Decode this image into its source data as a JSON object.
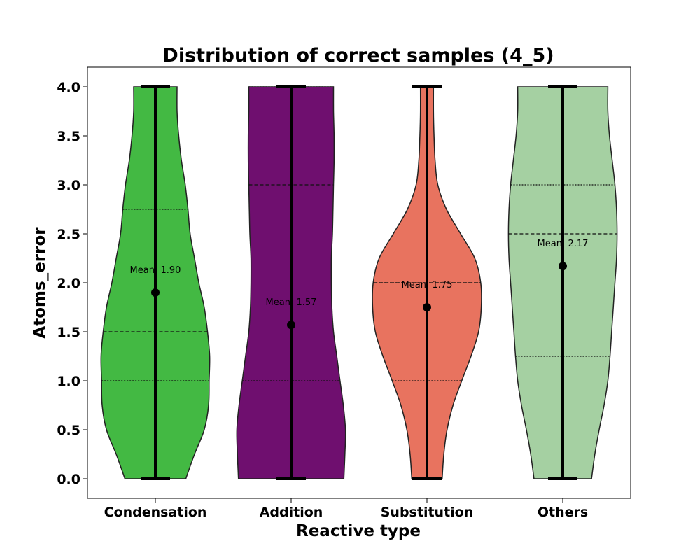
{
  "chart_data": {
    "type": "violin",
    "title": "Distribution of correct samples (4_5)",
    "xlabel": "Reactive type",
    "ylabel": "Atoms_error",
    "ylim": [
      -0.2,
      4.2
    ],
    "yticks": [
      "0.0",
      "0.5",
      "1.0",
      "1.5",
      "2.0",
      "2.5",
      "3.0",
      "3.5",
      "4.0"
    ],
    "categories": [
      "Condensation",
      "Addition",
      "Substitution",
      "Others"
    ],
    "series": [
      {
        "category": "Condensation",
        "color": "#43b943",
        "min": 0.0,
        "max": 4.0,
        "q1": 1.0,
        "median": 1.5,
        "q3": 2.75,
        "mean": 1.9,
        "mean_label": "Mean: 1.90",
        "density_width": [
          [
            0.0,
            0.56
          ],
          [
            0.25,
            0.72
          ],
          [
            0.5,
            0.9
          ],
          [
            0.75,
            0.98
          ],
          [
            1.0,
            0.99
          ],
          [
            1.25,
            1.0
          ],
          [
            1.5,
            0.96
          ],
          [
            1.75,
            0.9
          ],
          [
            2.0,
            0.8
          ],
          [
            2.25,
            0.72
          ],
          [
            2.5,
            0.64
          ],
          [
            2.75,
            0.6
          ],
          [
            3.0,
            0.55
          ],
          [
            3.25,
            0.48
          ],
          [
            3.5,
            0.43
          ],
          [
            3.75,
            0.4
          ],
          [
            4.0,
            0.4
          ]
        ]
      },
      {
        "category": "Addition",
        "color": "#6f0f6f",
        "min": 0.0,
        "max": 4.0,
        "q1": 1.0,
        "median": 3.0,
        "q3": 4.0,
        "mean": 1.57,
        "mean_label": "Mean: 1.57",
        "density_width": [
          [
            0.0,
            0.97
          ],
          [
            0.25,
            0.99
          ],
          [
            0.5,
            1.0
          ],
          [
            0.75,
            0.96
          ],
          [
            1.0,
            0.9
          ],
          [
            1.25,
            0.84
          ],
          [
            1.5,
            0.78
          ],
          [
            1.75,
            0.75
          ],
          [
            2.0,
            0.74
          ],
          [
            2.25,
            0.74
          ],
          [
            2.5,
            0.76
          ],
          [
            2.75,
            0.77
          ],
          [
            3.0,
            0.78
          ],
          [
            3.25,
            0.79
          ],
          [
            3.5,
            0.79
          ],
          [
            3.75,
            0.78
          ],
          [
            4.0,
            0.78
          ]
        ]
      },
      {
        "category": "Substitution",
        "color": "#e8735f",
        "min": 0.0,
        "max": 4.0,
        "q1": 1.0,
        "median": 2.0,
        "q3": 2.0,
        "mean": 1.75,
        "mean_label": "Mean: 1.75",
        "density_width": [
          [
            0.0,
            0.28
          ],
          [
            0.25,
            0.31
          ],
          [
            0.5,
            0.37
          ],
          [
            0.75,
            0.48
          ],
          [
            1.0,
            0.64
          ],
          [
            1.25,
            0.81
          ],
          [
            1.5,
            0.95
          ],
          [
            1.75,
            1.0
          ],
          [
            2.0,
            0.99
          ],
          [
            2.25,
            0.88
          ],
          [
            2.5,
            0.62
          ],
          [
            2.75,
            0.36
          ],
          [
            3.0,
            0.2
          ],
          [
            3.25,
            0.15
          ],
          [
            3.5,
            0.13
          ],
          [
            3.75,
            0.12
          ],
          [
            4.0,
            0.12
          ]
        ]
      },
      {
        "category": "Others",
        "color": "#a5d0a2",
        "min": 0.0,
        "max": 4.0,
        "q1": 1.25,
        "median": 2.5,
        "q3": 3.0,
        "mean": 2.17,
        "mean_label": "Mean: 2.17",
        "density_width": [
          [
            0.0,
            0.53
          ],
          [
            0.25,
            0.59
          ],
          [
            0.5,
            0.67
          ],
          [
            0.75,
            0.76
          ],
          [
            1.0,
            0.83
          ],
          [
            1.25,
            0.87
          ],
          [
            1.5,
            0.9
          ],
          [
            1.75,
            0.93
          ],
          [
            2.0,
            0.96
          ],
          [
            2.25,
            0.99
          ],
          [
            2.5,
            1.0
          ],
          [
            2.75,
            0.99
          ],
          [
            3.0,
            0.96
          ],
          [
            3.25,
            0.91
          ],
          [
            3.5,
            0.86
          ],
          [
            3.75,
            0.83
          ],
          [
            4.0,
            0.83
          ]
        ]
      }
    ],
    "grid": false,
    "legend": "none"
  }
}
